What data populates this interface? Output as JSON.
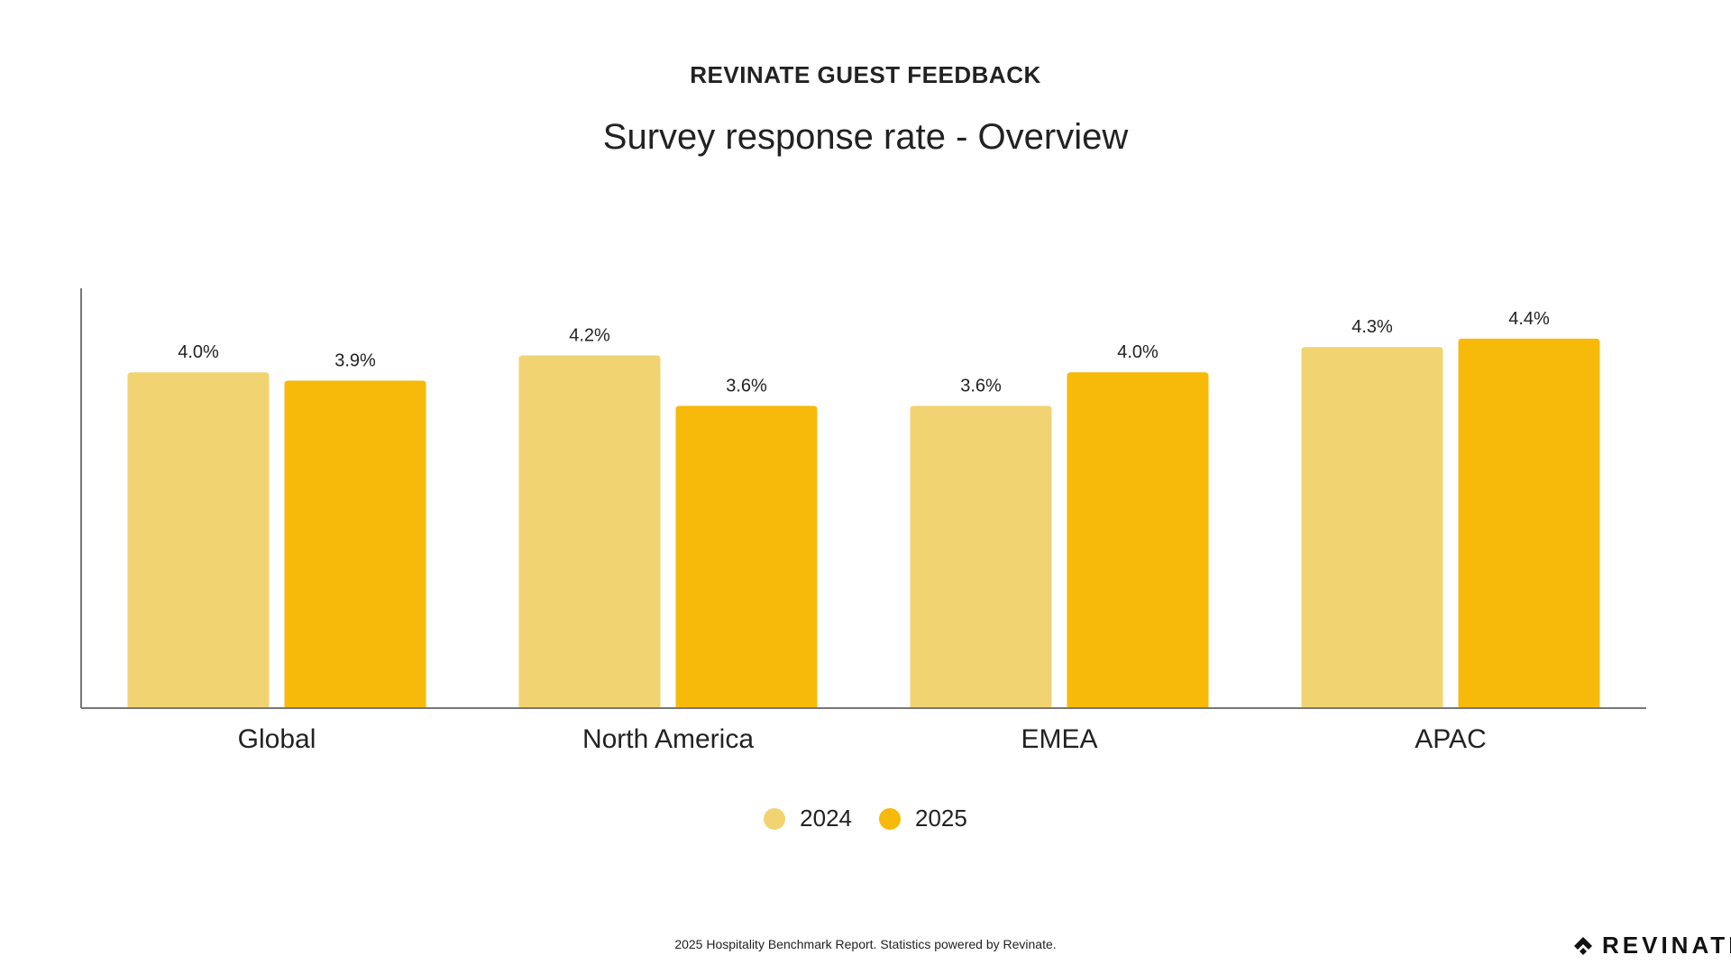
{
  "header": {
    "eyebrow": "REVINATE GUEST FEEDBACK",
    "title": "Survey response rate - Overview"
  },
  "chart_data": {
    "type": "bar",
    "title": "Survey response rate - Overview",
    "categories": [
      "Global",
      "North America",
      "EMEA",
      "APAC"
    ],
    "series": [
      {
        "name": "2024",
        "values": [
          4.0,
          4.2,
          3.6,
          4.3
        ],
        "labels": [
          "4.0%",
          "4.2%",
          "3.6%",
          "4.3%"
        ],
        "color": "#F2D372"
      },
      {
        "name": "2025",
        "values": [
          3.9,
          3.6,
          4.0,
          4.4
        ],
        "labels": [
          "3.9%",
          "3.6%",
          "4.0%",
          "4.4%"
        ],
        "color": "#F7B90A"
      }
    ],
    "ylim": [
      0,
      5
    ],
    "grid": false,
    "legend": "bottom-center"
  },
  "footer": {
    "note": "2025 Hospitality Benchmark Report. Statistics powered by Revinate."
  },
  "brand": {
    "logo_text": "REVINATE",
    "icon": "revinate-logo-icon"
  }
}
